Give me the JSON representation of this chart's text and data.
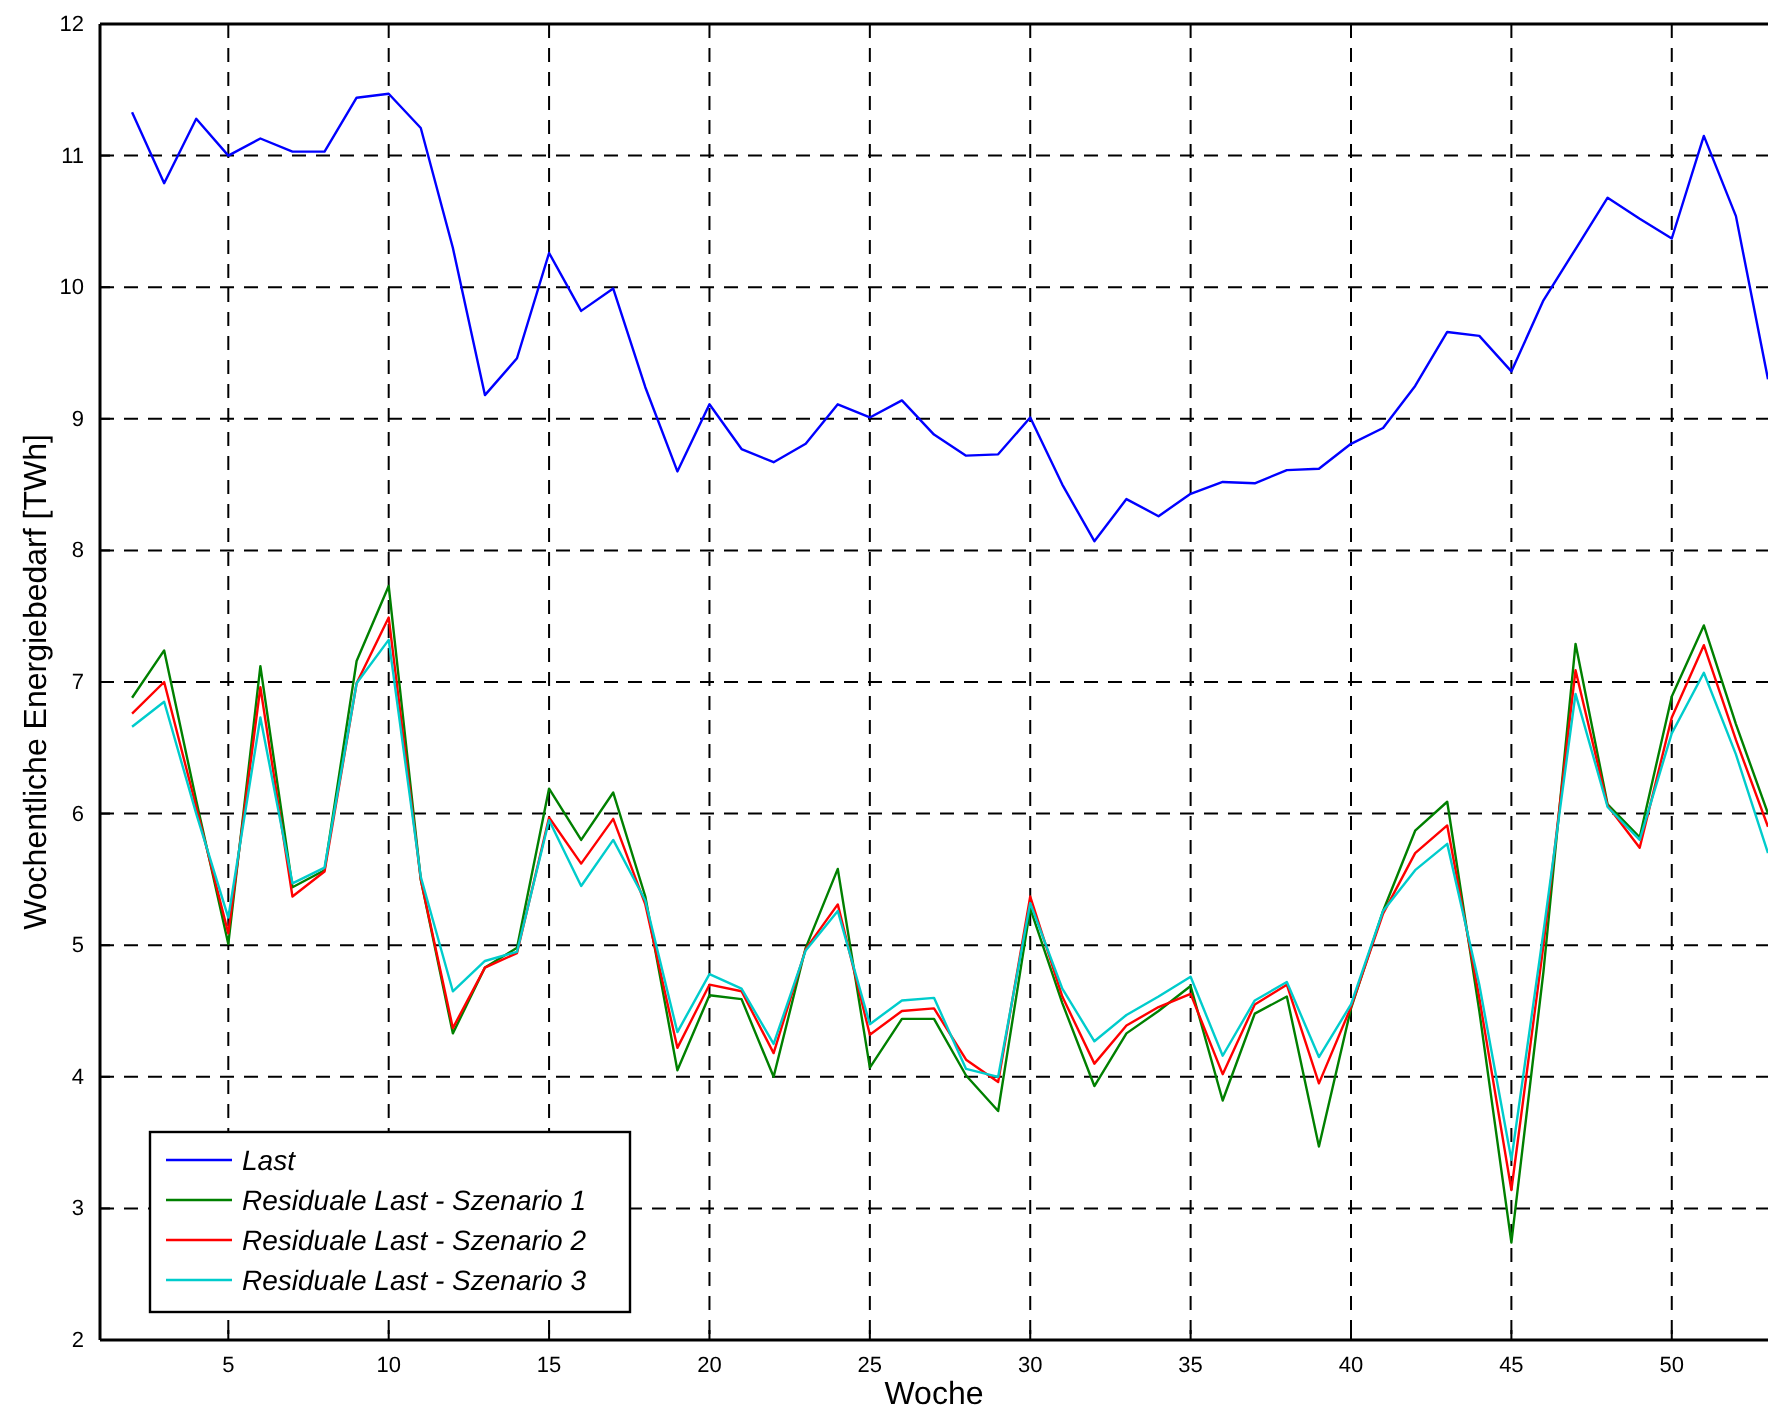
{
  "chart_data": {
    "type": "line",
    "xlabel": "Woche",
    "ylabel": "Wochentliche Energiebedarf [TWh]",
    "x": [
      2,
      3,
      4,
      5,
      6,
      7,
      8,
      9,
      10,
      11,
      12,
      13,
      14,
      15,
      16,
      17,
      18,
      19,
      20,
      21,
      22,
      23,
      24,
      25,
      26,
      27,
      28,
      29,
      30,
      31,
      32,
      33,
      34,
      35,
      36,
      37,
      38,
      39,
      40,
      41,
      42,
      43,
      44,
      45,
      46,
      47,
      48,
      49,
      50,
      51,
      52,
      53
    ],
    "xlim": [
      1,
      53
    ],
    "xticks": [
      5,
      10,
      15,
      20,
      25,
      30,
      35,
      40,
      45,
      50
    ],
    "ylim": [
      2,
      12
    ],
    "yticks": [
      2,
      3,
      4,
      5,
      6,
      7,
      8,
      9,
      10,
      11,
      12
    ],
    "grid": true,
    "legend": "bottom left",
    "line_style": "solid",
    "series": [
      {
        "name": "Last",
        "color": "#0000ff",
        "values": [
          11.33,
          10.79,
          11.28,
          11.0,
          11.13,
          11.03,
          11.03,
          11.44,
          11.47,
          11.21,
          10.3,
          9.18,
          9.46,
          10.26,
          9.82,
          9.99,
          9.24,
          8.6,
          9.11,
          8.77,
          8.67,
          8.81,
          9.11,
          9.01,
          9.14,
          8.88,
          8.72,
          8.73,
          9.01,
          8.5,
          8.07,
          8.39,
          8.26,
          8.43,
          8.52,
          8.51,
          8.61,
          8.62,
          8.81,
          8.93,
          9.25,
          9.66,
          9.63,
          9.36,
          9.9,
          10.29,
          10.68,
          10.52,
          10.37,
          11.15,
          10.54,
          9.3
        ]
      },
      {
        "name": "Residuale Last - Szenario 1",
        "color": "#008000",
        "values": [
          6.88,
          7.24,
          6.1,
          5.01,
          7.12,
          5.44,
          5.57,
          7.16,
          7.73,
          5.5,
          4.33,
          4.83,
          4.98,
          6.19,
          5.8,
          6.16,
          5.37,
          4.05,
          4.62,
          4.59,
          4.0,
          4.98,
          5.58,
          4.07,
          4.44,
          4.44,
          4.01,
          3.74,
          5.28,
          4.56,
          3.93,
          4.33,
          4.5,
          4.69,
          3.82,
          4.48,
          4.61,
          3.47,
          4.52,
          5.26,
          5.87,
          6.09,
          4.5,
          2.74,
          4.8,
          7.29,
          6.07,
          5.82,
          6.89,
          7.43,
          6.68,
          6.0
        ]
      },
      {
        "name": "Residuale Last - Szenario 2",
        "color": "#ff0000",
        "values": [
          6.76,
          7.0,
          6.05,
          5.09,
          6.96,
          5.37,
          5.56,
          6.99,
          7.49,
          5.5,
          4.37,
          4.83,
          4.94,
          5.97,
          5.62,
          5.96,
          5.31,
          4.22,
          4.7,
          4.65,
          4.18,
          4.97,
          5.31,
          4.32,
          4.5,
          4.52,
          4.13,
          3.96,
          5.37,
          4.61,
          4.1,
          4.39,
          4.53,
          4.63,
          4.02,
          4.55,
          4.7,
          3.95,
          4.53,
          5.24,
          5.7,
          5.91,
          4.6,
          3.14,
          5.0,
          7.09,
          6.06,
          5.74,
          6.73,
          7.28,
          6.56,
          5.9
        ]
      },
      {
        "name": "Residuale Last - Szenario 3",
        "color": "#00cccc",
        "values": [
          6.66,
          6.85,
          6.0,
          5.21,
          6.73,
          5.47,
          5.59,
          6.99,
          7.32,
          5.52,
          4.65,
          4.88,
          4.95,
          5.95,
          5.45,
          5.8,
          5.34,
          4.34,
          4.78,
          4.67,
          4.25,
          4.96,
          5.26,
          4.4,
          4.58,
          4.6,
          4.06,
          4.0,
          5.32,
          4.67,
          4.27,
          4.47,
          4.61,
          4.76,
          4.16,
          4.58,
          4.72,
          4.15,
          4.55,
          5.26,
          5.57,
          5.77,
          4.7,
          3.37,
          5.1,
          6.91,
          6.05,
          5.8,
          6.61,
          7.07,
          6.45,
          5.7
        ]
      }
    ]
  }
}
